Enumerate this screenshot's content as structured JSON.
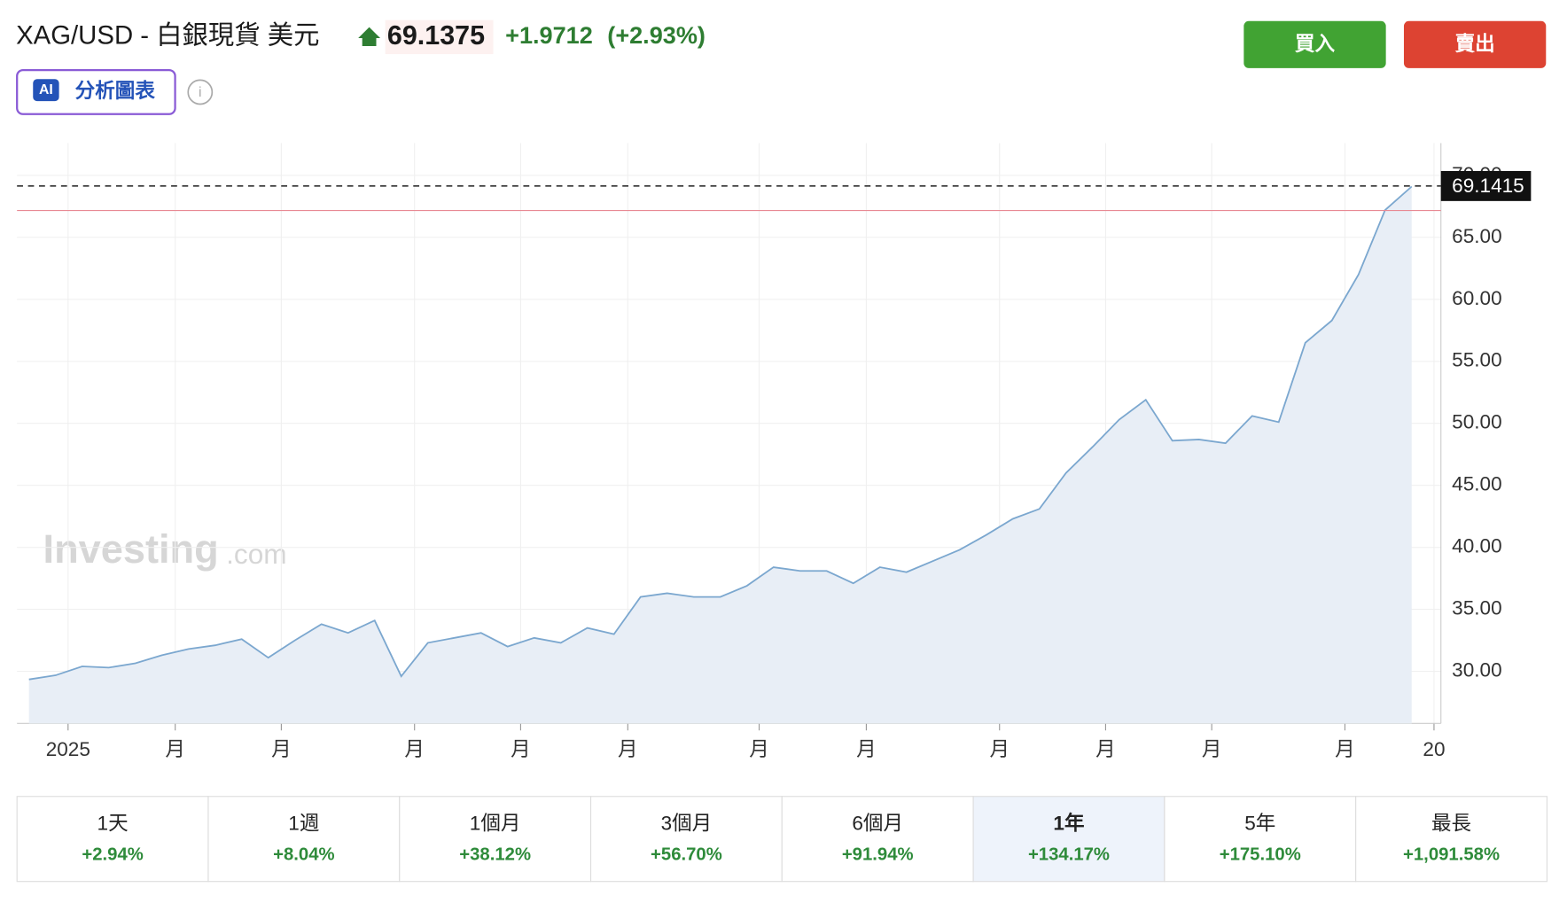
{
  "header": {
    "symbol": "XAG/USD - 白銀現貨 美元",
    "price": "69.1375",
    "change": "+1.9712",
    "change_pct": "(+2.93%)"
  },
  "buttons": {
    "buy": "買入",
    "sell": "賣出"
  },
  "ai_badge": {
    "icon": "AI",
    "label": "分析圖表"
  },
  "watermark": {
    "brand": "Investing",
    "suffix": ".com"
  },
  "chart_data": {
    "type": "area",
    "color": "#7ba7cf",
    "fill": "#e8eef6",
    "x": [
      0,
      1,
      2,
      3,
      4,
      5,
      6,
      7,
      8,
      9,
      10,
      11,
      12,
      13,
      14,
      15,
      16,
      17,
      18,
      19,
      20,
      21,
      22,
      23,
      24,
      25,
      26,
      27,
      28,
      29,
      30,
      31,
      32,
      33,
      34,
      35,
      36,
      37,
      38,
      39,
      40,
      41,
      42,
      43,
      44,
      45,
      46,
      47,
      48,
      49,
      50,
      51,
      52
    ],
    "values": [
      29.35,
      29.68,
      30.4,
      30.3,
      30.65,
      31.3,
      31.8,
      32.1,
      32.6,
      31.1,
      32.5,
      33.8,
      33.1,
      34.1,
      29.6,
      32.3,
      32.7,
      33.1,
      32.0,
      32.7,
      32.3,
      33.5,
      33.0,
      36.0,
      36.3,
      36.0,
      36.0,
      36.9,
      38.4,
      38.1,
      38.1,
      37.1,
      38.4,
      38.0,
      38.9,
      39.8,
      41.0,
      42.3,
      43.1,
      46.0,
      48.1,
      50.3,
      51.9,
      48.6,
      48.7,
      48.4,
      50.6,
      50.1,
      56.5,
      58.3,
      62.0,
      67.2,
      69.1
    ],
    "xlim": [
      -0.45,
      53.1
    ],
    "xticks": [
      {
        "value": 1.47,
        "label": "2025"
      },
      {
        "value": 5.5,
        "label": "月"
      },
      {
        "value": 9.49,
        "label": "月"
      },
      {
        "value": 14.5,
        "label": "月"
      },
      {
        "value": 18.49,
        "label": "月"
      },
      {
        "value": 22.52,
        "label": "月"
      },
      {
        "value": 27.46,
        "label": "月"
      },
      {
        "value": 31.49,
        "label": "月"
      },
      {
        "value": 36.5,
        "label": "月"
      },
      {
        "value": 40.49,
        "label": "月"
      },
      {
        "value": 44.48,
        "label": "月"
      },
      {
        "value": 49.49,
        "label": "月"
      },
      {
        "value": 52.84,
        "label": "20"
      }
    ],
    "ylim": [
      25.8,
      72.6
    ],
    "yticks": [
      {
        "value": 30,
        "label": "30.00"
      },
      {
        "value": 35,
        "label": "35.00"
      },
      {
        "value": 40,
        "label": "40.00"
      },
      {
        "value": 45,
        "label": "45.00"
      },
      {
        "value": 50,
        "label": "50.00"
      },
      {
        "value": 55,
        "label": "55.00"
      },
      {
        "value": 60,
        "label": "60.00"
      },
      {
        "value": 65,
        "label": "65.00"
      },
      {
        "value": 70,
        "label": "70.00"
      }
    ],
    "grid": true,
    "last_price": 69.1415,
    "reference_line": 67.17
  },
  "periods": [
    {
      "label": "1天",
      "change": "+2.94%"
    },
    {
      "label": "1週",
      "change": "+8.04%"
    },
    {
      "label": "1個月",
      "change": "+38.12%"
    },
    {
      "label": "3個月",
      "change": "+56.70%"
    },
    {
      "label": "6個月",
      "change": "+91.94%"
    },
    {
      "label": "1年",
      "change": "+134.17%"
    },
    {
      "label": "5年",
      "change": "+175.10%"
    },
    {
      "label": "最長",
      "change": "+1,091.58%"
    }
  ],
  "selected_period": 5
}
